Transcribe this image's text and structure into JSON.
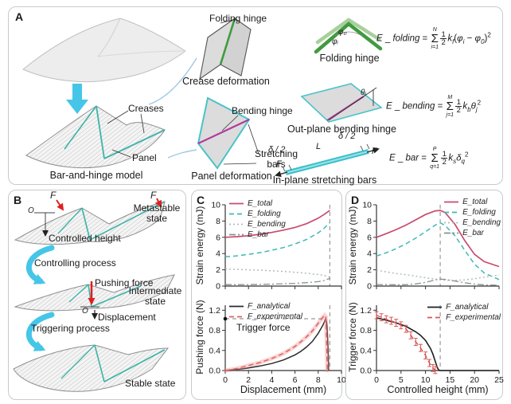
{
  "figure": {
    "bg": "#ffffff",
    "panel_border": "#c6cbcd",
    "accent_cyan": "#45c6e8",
    "accent_teal": "#3db3aa",
    "accent_green": "#3f9b3f",
    "accent_magenta": "#b03a9e",
    "accent_red": "#e01f1f"
  },
  "panelA": {
    "label": "A",
    "captions": {
      "model": "Bar-and-hinge model",
      "crease": "Crease deformation",
      "panel": "Panel deformation",
      "folding": "Folding hinge",
      "outplane": "Out-plane bending hinge",
      "inplane": "In-plane stretching bars"
    },
    "annotations": {
      "creases": "Creases",
      "panel": "Panel",
      "folding_hinge": "Folding hinge",
      "bending_hinge": "Bending hinge",
      "stretching_bars": "Stretching\nbars",
      "phi0": "φ₀",
      "phii": "φᵢ",
      "thetaj": "θⱼ",
      "delta_left": "δ / 2",
      "delta_right": "δ / 2",
      "length": "L",
      "force_left": "F",
      "force_right": "F"
    },
    "equations": {
      "folding": [
        {
          "t": "i",
          "v": "E"
        },
        {
          "t": "r",
          "v": " _ "
        },
        {
          "t": "i",
          "v": "folding"
        },
        {
          "t": "r",
          "v": " = "
        },
        {
          "t": "sum",
          "up": "N",
          "lo": "i=1"
        },
        {
          "t": "frac",
          "n": "1",
          "d": "2"
        },
        {
          "t": "i",
          "v": "k"
        },
        {
          "t": "sub",
          "v": "f"
        },
        {
          "t": "r",
          "v": "("
        },
        {
          "t": "i",
          "v": "φ"
        },
        {
          "t": "sub",
          "v": "i"
        },
        {
          "t": "r",
          "v": " − "
        },
        {
          "t": "i",
          "v": "φ"
        },
        {
          "t": "sub",
          "v": "0"
        },
        {
          "t": "r",
          "v": ")"
        },
        {
          "t": "sup",
          "v": "2"
        }
      ],
      "bending": [
        {
          "t": "i",
          "v": "E"
        },
        {
          "t": "r",
          "v": " _ "
        },
        {
          "t": "i",
          "v": "bending"
        },
        {
          "t": "r",
          "v": " = "
        },
        {
          "t": "sum",
          "up": "M",
          "lo": "j=1"
        },
        {
          "t": "frac",
          "n": "1",
          "d": "2"
        },
        {
          "t": "i",
          "v": "k"
        },
        {
          "t": "sub",
          "v": "b"
        },
        {
          "t": "i",
          "v": "θ"
        },
        {
          "t": "sub",
          "v": "j"
        },
        {
          "t": "sup",
          "v": "2"
        }
      ],
      "bar": [
        {
          "t": "i",
          "v": "E"
        },
        {
          "t": "r",
          "v": " _ "
        },
        {
          "t": "i",
          "v": "bar"
        },
        {
          "t": "r",
          "v": " = "
        },
        {
          "t": "sum",
          "up": "P",
          "lo": "q=1"
        },
        {
          "t": "frac",
          "n": "1",
          "d": "2"
        },
        {
          "t": "i",
          "v": "k"
        },
        {
          "t": "sub",
          "v": "s"
        },
        {
          "t": "i",
          "v": "δ"
        },
        {
          "t": "sub",
          "v": "q"
        },
        {
          "t": "sup",
          "v": "2"
        }
      ]
    }
  },
  "panelB": {
    "label": "B",
    "states": {
      "metastable": "Metastable\nstate",
      "intermediate": "Intermediate\nstate",
      "stable": "Stable state"
    },
    "processes": {
      "controlling": "Controlling process",
      "triggering": "Triggering process"
    },
    "annotations": {
      "force1": "F",
      "force2": "F",
      "origin1": "O",
      "origin2": "O",
      "controlled_height": "Controlled height",
      "pushing_force": "Pushing force",
      "displacement": "Displacement"
    }
  },
  "panelC": {
    "label": "C",
    "trigger_label": "Trigger force"
  },
  "panelD": {
    "label": "D"
  },
  "chart_data": {
    "c_top": {
      "type": "line",
      "ylabel": "Strain energy (mJ)",
      "xlim": [
        0,
        10
      ],
      "ylim": [
        0,
        10
      ],
      "xticks": [
        0,
        2,
        4,
        6,
        8,
        10
      ],
      "xtick_labels": false,
      "ytick_vals": [
        0,
        2,
        4,
        6,
        8,
        10
      ],
      "ytick_labels": [
        "0",
        "2",
        "4",
        "6",
        "8",
        "10"
      ],
      "vlines": [
        9
      ],
      "legend_pos": "top-left",
      "series": [
        {
          "name": "E_total",
          "color": "#c84b6e",
          "dash": "solid",
          "width": 1.7,
          "x": [
            0,
            1,
            2,
            3,
            4,
            5,
            6,
            7,
            8,
            8.5,
            9
          ],
          "y": [
            6.0,
            6.08,
            6.2,
            6.37,
            6.6,
            6.88,
            7.22,
            7.68,
            8.35,
            8.8,
            9.3
          ]
        },
        {
          "name": "E_folding",
          "color": "#3fb8b8",
          "dash": "dashed",
          "width": 1.5,
          "x": [
            0,
            1,
            2,
            3,
            4,
            5,
            6,
            7,
            8,
            8.5,
            9
          ],
          "y": [
            3.6,
            3.72,
            3.9,
            4.12,
            4.4,
            4.74,
            5.18,
            5.74,
            6.55,
            7.1,
            7.8
          ]
        },
        {
          "name": "E_bending",
          "color": "#b4bcbc",
          "dash": "dotted",
          "width": 1.5,
          "x": [
            0,
            1,
            2,
            3,
            4,
            5,
            6,
            7,
            8,
            8.5,
            9
          ],
          "y": [
            2.1,
            2.05,
            2.0,
            1.95,
            1.88,
            1.8,
            1.7,
            1.58,
            1.42,
            1.3,
            1.1
          ]
        },
        {
          "name": "E_bar",
          "color": "#8a9191",
          "dash": "dashdot",
          "width": 1.3,
          "x": [
            0,
            1,
            2,
            3,
            4,
            5,
            6,
            7,
            8,
            8.5,
            9
          ],
          "y": [
            0.18,
            0.18,
            0.19,
            0.21,
            0.24,
            0.28,
            0.33,
            0.42,
            0.55,
            0.68,
            0.95
          ]
        }
      ]
    },
    "c_bottom": {
      "type": "line",
      "ylabel": "Pushing force (N)",
      "xlabel": "Displacement (mm)",
      "xlim": [
        0,
        10
      ],
      "ylim": [
        0,
        1.3
      ],
      "xticks": [
        0,
        2,
        4,
        6,
        8,
        10
      ],
      "xtick_labels": true,
      "ytick_vals": [
        0,
        0.4,
        0.8,
        1.2
      ],
      "ytick_labels": [
        "0.0",
        "0.4",
        "0.8",
        "1.2"
      ],
      "vlines": [
        9
      ],
      "hline": {
        "y": 1.03,
        "x0": 0,
        "x1": 8.7
      },
      "dot": {
        "x": 0,
        "y": 1.03
      },
      "annotation": "Trigger force",
      "series": [
        {
          "name": "F_analytical",
          "color": "#2b2b2b",
          "dash": "solid",
          "width": 1.5,
          "x": [
            0,
            1,
            2,
            3,
            4,
            5,
            6,
            6.5,
            7,
            7.5,
            8,
            8.4,
            8.65,
            8.75,
            8.85,
            8.9
          ],
          "y": [
            0,
            0.02,
            0.05,
            0.09,
            0.14,
            0.21,
            0.31,
            0.38,
            0.47,
            0.58,
            0.74,
            0.9,
            1.03,
            0.9,
            0.45,
            0
          ]
        },
        {
          "name": "F_experimental",
          "color": "#e06262",
          "dash": "dashed",
          "width": 1.5,
          "band": true,
          "x": [
            0,
            1,
            2,
            3,
            4,
            5,
            6,
            6.5,
            7,
            7.5,
            8,
            8.3,
            8.55,
            8.65,
            8.72,
            8.78
          ],
          "y": [
            0,
            0.04,
            0.1,
            0.16,
            0.24,
            0.34,
            0.48,
            0.57,
            0.67,
            0.79,
            0.94,
            1.03,
            1.1,
            1.07,
            0.6,
            0
          ]
        }
      ]
    },
    "d_top": {
      "type": "line",
      "ylabel": "Strain energy (mJ)",
      "xlim": [
        0,
        25
      ],
      "ylim": [
        0,
        10
      ],
      "xticks": [
        0,
        5,
        10,
        15,
        20,
        25
      ],
      "xtick_labels": false,
      "ytick_vals": [
        0,
        2,
        4,
        6,
        8,
        10
      ],
      "ytick_labels": [
        "0",
        "2",
        "4",
        "6",
        "8",
        "10"
      ],
      "vlines": [
        13
      ],
      "legend_pos": "top-right",
      "series": [
        {
          "name": "E_total",
          "color": "#c84b6e",
          "dash": "solid",
          "width": 1.7,
          "x": [
            0,
            2,
            4,
            6,
            8,
            10,
            12,
            13,
            14,
            16,
            18,
            20,
            22,
            25
          ],
          "y": [
            6.0,
            6.45,
            6.95,
            7.5,
            8.15,
            8.8,
            9.25,
            9.3,
            9.05,
            7.6,
            5.6,
            3.9,
            3.0,
            2.4
          ]
        },
        {
          "name": "E_folding",
          "color": "#3fb8b8",
          "dash": "dashed",
          "width": 1.5,
          "x": [
            0,
            2,
            4,
            6,
            8,
            10,
            12,
            13,
            14,
            16,
            18,
            20,
            22,
            25
          ],
          "y": [
            3.7,
            4.1,
            4.6,
            5.2,
            5.9,
            6.7,
            7.5,
            7.78,
            7.45,
            6.2,
            4.4,
            2.7,
            1.6,
            0.8
          ]
        },
        {
          "name": "E_bending",
          "color": "#b4bcbc",
          "dash": "dotted",
          "width": 1.5,
          "x": [
            0,
            2,
            4,
            6,
            8,
            10,
            12,
            13,
            14,
            16,
            18,
            20,
            22,
            25
          ],
          "y": [
            1.95,
            1.75,
            1.55,
            1.4,
            1.22,
            1.02,
            0.85,
            0.78,
            0.73,
            0.7,
            0.75,
            0.9,
            1.1,
            1.35
          ]
        },
        {
          "name": "E_bar",
          "color": "#8a9191",
          "dash": "dashdot",
          "width": 1.3,
          "x": [
            0,
            2,
            4,
            6,
            8,
            10,
            12,
            13,
            14,
            16,
            18,
            20,
            22,
            25
          ],
          "y": [
            0.2,
            0.18,
            0.17,
            0.18,
            0.26,
            0.45,
            0.75,
            0.85,
            0.82,
            0.62,
            0.4,
            0.25,
            0.15,
            0.1
          ]
        }
      ]
    },
    "d_bottom": {
      "type": "line",
      "ylabel": "Trigger force (N)",
      "xlabel": "Controlled height (mm)",
      "xlim": [
        0,
        25
      ],
      "ylim": [
        0,
        1.3
      ],
      "xticks": [
        0,
        5,
        10,
        15,
        20,
        25
      ],
      "xtick_labels": true,
      "ytick_vals": [
        0,
        0.4,
        0.8,
        1.2
      ],
      "ytick_labels": [
        "0.0",
        "0.4",
        "0.8",
        "1.2"
      ],
      "vlines": [
        13
      ],
      "series": [
        {
          "name": "F_analytical",
          "color": "#1f1f1f",
          "dash": "solid",
          "width": 1.6,
          "x": [
            0,
            2,
            4,
            6,
            8,
            9,
            10,
            11,
            11.5,
            12,
            12.4,
            12.7,
            13,
            15,
            20,
            25
          ],
          "y": [
            1.05,
            1.0,
            0.95,
            0.88,
            0.77,
            0.7,
            0.6,
            0.44,
            0.33,
            0.18,
            0.06,
            0.01,
            0,
            0,
            0,
            0
          ]
        },
        {
          "name": "F_experimental",
          "color": "#d95555",
          "dash": "dashed",
          "width": 1.4,
          "errorbars": true,
          "yerr": 0.07,
          "x": [
            0,
            1,
            2,
            3,
            4,
            5,
            6,
            7,
            8,
            9,
            10,
            10.8,
            11.5,
            12
          ],
          "y": [
            1.1,
            1.06,
            1.02,
            0.99,
            0.95,
            0.9,
            0.83,
            0.7,
            0.57,
            0.45,
            0.3,
            0.15,
            0.05,
            0.01
          ]
        }
      ]
    }
  }
}
